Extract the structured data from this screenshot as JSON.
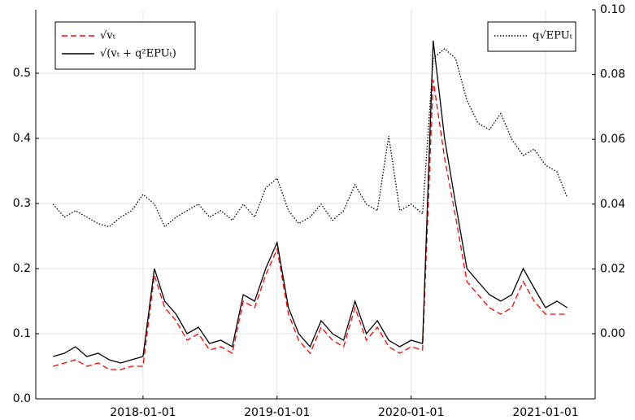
{
  "chart_data": {
    "type": "line",
    "grid": true,
    "x": [
      "2017-05-01",
      "2017-06-01",
      "2017-07-01",
      "2017-08-01",
      "2017-09-01",
      "2017-10-01",
      "2017-11-01",
      "2017-12-01",
      "2018-01-01",
      "2018-02-01",
      "2018-03-01",
      "2018-04-01",
      "2018-05-01",
      "2018-06-01",
      "2018-07-01",
      "2018-08-01",
      "2018-09-01",
      "2018-10-01",
      "2018-11-01",
      "2018-12-01",
      "2019-01-01",
      "2019-02-01",
      "2019-03-01",
      "2019-04-01",
      "2019-05-01",
      "2019-06-01",
      "2019-07-01",
      "2019-08-01",
      "2019-09-01",
      "2019-10-01",
      "2019-11-01",
      "2019-12-01",
      "2020-01-01",
      "2020-02-01",
      "2020-03-01",
      "2020-04-01",
      "2020-05-01",
      "2020-06-01",
      "2020-07-01",
      "2020-08-01",
      "2020-09-01",
      "2020-10-01",
      "2020-11-01",
      "2020-12-01",
      "2021-01-01",
      "2021-02-01",
      "2021-03-01"
    ],
    "xlim": [
      "2017-03-15",
      "2021-05-16"
    ],
    "xticks": [
      "2018-01-01",
      "2019-01-01",
      "2020-01-01",
      "2021-01-01"
    ],
    "ylim": [
      0,
      0.5975
    ],
    "yticks": [
      {
        "value": 0,
        "label": "0.0"
      },
      {
        "value": 0.1,
        "label": "0.1"
      },
      {
        "value": 0.2,
        "label": "0.2"
      },
      {
        "value": 0.3,
        "label": "0.3"
      },
      {
        "value": 0.4,
        "label": "0.4"
      },
      {
        "value": 0.5,
        "label": "0.5"
      }
    ],
    "y2lim": [
      -0.0201,
      0.1
    ],
    "y2ticks": [
      {
        "value": 0,
        "label": "0.00"
      },
      {
        "value": 0.02,
        "label": "0.02"
      },
      {
        "value": 0.04,
        "label": "0.04"
      },
      {
        "value": 0.06,
        "label": "0.06"
      },
      {
        "value": 0.08,
        "label": "0.08"
      },
      {
        "value": 0.1,
        "label": "0.10"
      }
    ],
    "series": [
      {
        "name": "√vₜ",
        "color": "#ff0000",
        "dash": "dashed",
        "values": [
          0.05,
          0.055,
          0.06,
          0.05,
          0.055,
          0.045,
          0.045,
          0.05,
          0.05,
          0.19,
          0.14,
          0.12,
          0.09,
          0.1,
          0.075,
          0.08,
          0.07,
          0.15,
          0.14,
          0.19,
          0.23,
          0.13,
          0.09,
          0.07,
          0.11,
          0.09,
          0.08,
          0.14,
          0.09,
          0.11,
          0.08,
          0.07,
          0.08,
          0.075,
          0.49,
          0.37,
          0.28,
          0.18,
          0.16,
          0.14,
          0.13,
          0.14,
          0.18,
          0.15,
          0.13,
          0.13,
          0.13
        ]
      },
      {
        "name": "√(vₜ + q²EPUₜ)",
        "color": "#000000",
        "dash": "solid",
        "values": [
          0.065,
          0.07,
          0.08,
          0.065,
          0.07,
          0.06,
          0.055,
          0.06,
          0.065,
          0.2,
          0.15,
          0.13,
          0.1,
          0.11,
          0.085,
          0.09,
          0.08,
          0.16,
          0.15,
          0.2,
          0.24,
          0.14,
          0.1,
          0.08,
          0.12,
          0.1,
          0.09,
          0.15,
          0.1,
          0.12,
          0.09,
          0.08,
          0.09,
          0.085,
          0.55,
          0.4,
          0.3,
          0.2,
          0.18,
          0.16,
          0.15,
          0.16,
          0.2,
          0.17,
          0.14,
          0.15,
          0.14
        ]
      },
      {
        "name": "q√EPUₜ",
        "color": "#000000",
        "dash": "dotted",
        "axis": "y2",
        "values": [
          0.04,
          0.036,
          0.038,
          0.036,
          0.034,
          0.033,
          0.036,
          0.038,
          0.043,
          0.04,
          0.033,
          0.036,
          0.038,
          0.04,
          0.036,
          0.038,
          0.035,
          0.04,
          0.036,
          0.045,
          0.048,
          0.038,
          0.034,
          0.036,
          0.04,
          0.035,
          0.038,
          0.046,
          0.04,
          0.038,
          0.061,
          0.038,
          0.04,
          0.037,
          0.085,
          0.088,
          0.085,
          0.072,
          0.065,
          0.063,
          0.068,
          0.06,
          0.055,
          0.057,
          0.052,
          0.05,
          0.042
        ]
      }
    ],
    "legend": [
      {
        "corner": "top-left",
        "series": [
          0,
          1
        ]
      },
      {
        "corner": "top-right",
        "series": [
          2
        ]
      }
    ]
  }
}
